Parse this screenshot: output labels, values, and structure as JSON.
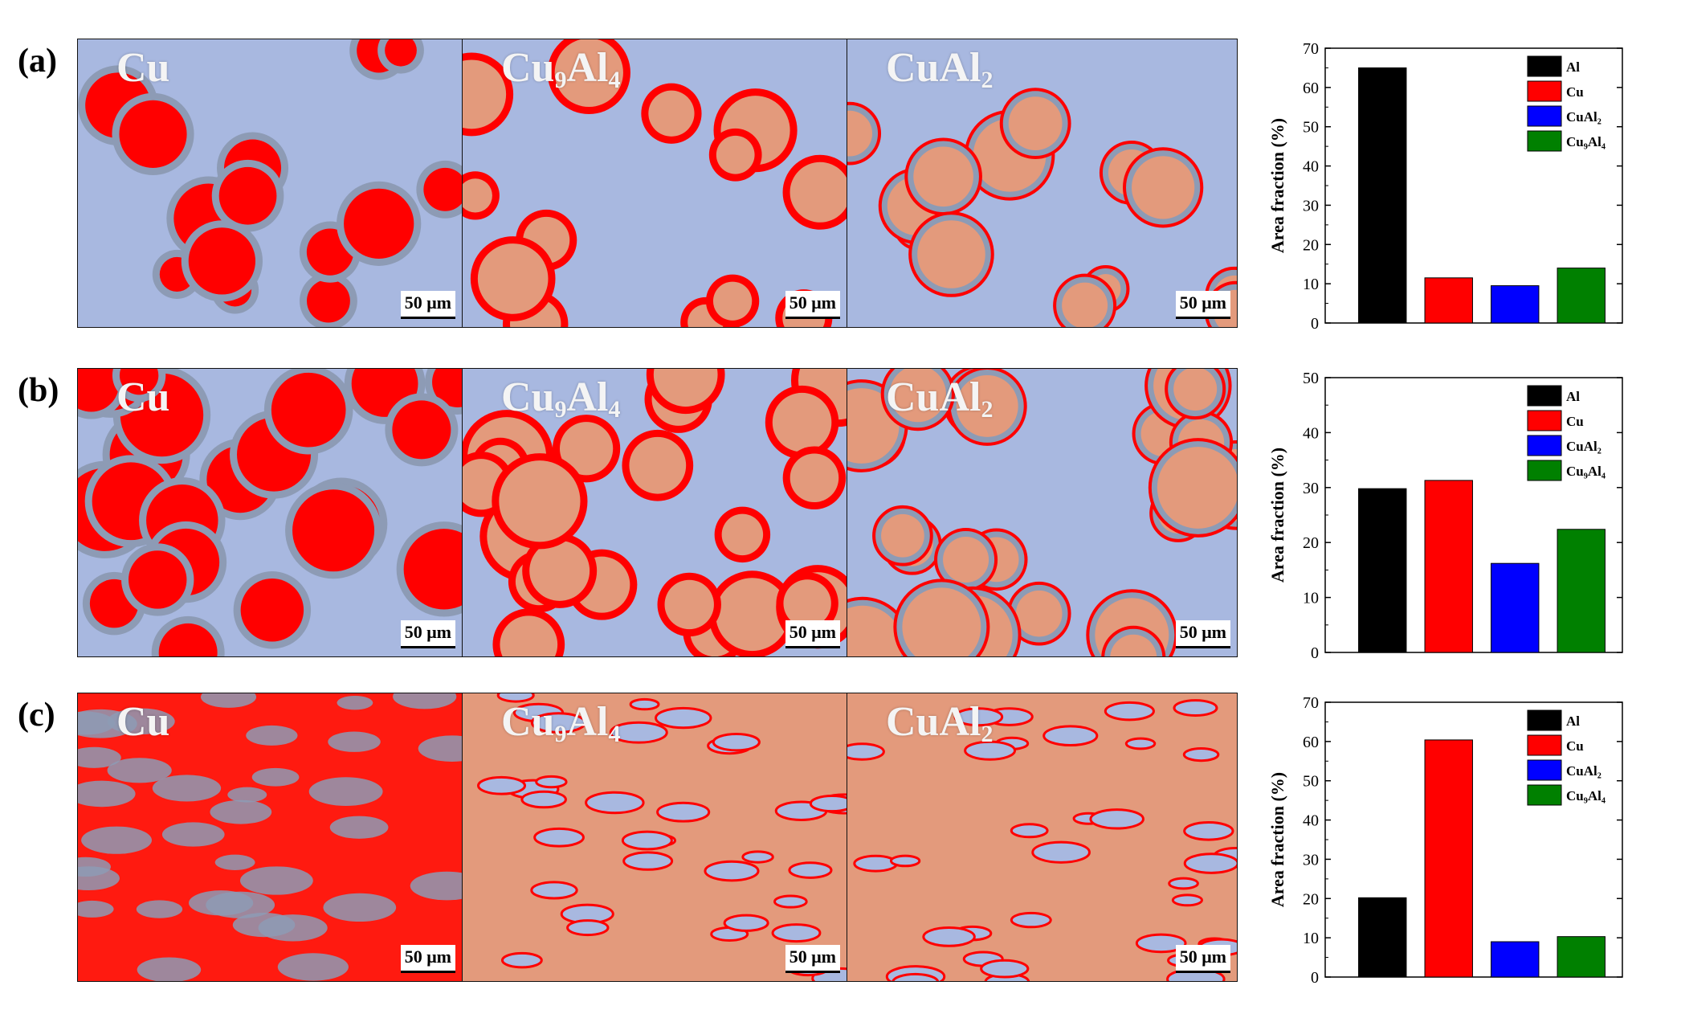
{
  "panels": [
    {
      "label": "(a)",
      "phases": [
        {
          "base": "Cu",
          "sub": ""
        },
        {
          "base": "Cu",
          "sub": "9",
          "base2": "Al",
          "sub2": "4"
        },
        {
          "base": "CuAl",
          "sub": "2"
        }
      ],
      "scale_bar": "50 μm"
    },
    {
      "label": "(b)",
      "phases": [
        {
          "base": "Cu",
          "sub": ""
        },
        {
          "base": "Cu",
          "sub": "9",
          "base2": "Al",
          "sub2": "4"
        },
        {
          "base": "CuAl",
          "sub": "2"
        }
      ],
      "scale_bar": "50 μm"
    },
    {
      "label": "(c)",
      "phases": [
        {
          "base": "Cu",
          "sub": ""
        },
        {
          "base": "Cu",
          "sub": "9",
          "base2": "Al",
          "sub2": "4"
        },
        {
          "base": "CuAl",
          "sub": "2"
        }
      ],
      "scale_bar": "50 μm"
    }
  ],
  "colors": {
    "Al": "#000000",
    "Cu": "#ff0000",
    "CuAl2": "#0000ff",
    "Cu9Al4": "#008000",
    "matrix": "#a8b8e0",
    "ring": "#8d9bb5",
    "particle": "#e39a7c"
  },
  "chart_data": [
    {
      "type": "bar",
      "categories": [
        "Al",
        "Cu",
        "CuAl2",
        "Cu9Al4"
      ],
      "values": [
        65,
        11.5,
        9.5,
        14
      ],
      "ylabel": "Area fraction (%)",
      "ylim": [
        0,
        70
      ],
      "yticks": [
        0,
        10,
        20,
        30,
        40,
        50,
        60,
        70
      ],
      "legend": [
        "Al",
        "Cu",
        "CuAl₂",
        "Cu₉Al₄"
      ],
      "legend_position": "top-right"
    },
    {
      "type": "bar",
      "categories": [
        "Al",
        "Cu",
        "CuAl2",
        "Cu9Al4"
      ],
      "values": [
        29.8,
        31.3,
        16.2,
        22.4
      ],
      "ylabel": "Area fraction (%)",
      "ylim": [
        0,
        50
      ],
      "yticks": [
        0,
        10,
        20,
        30,
        40,
        50
      ],
      "legend": [
        "Al",
        "Cu",
        "CuAl₂",
        "Cu₉Al₄"
      ],
      "legend_position": "top-right"
    },
    {
      "type": "bar",
      "categories": [
        "Al",
        "Cu",
        "CuAl2",
        "Cu9Al4"
      ],
      "values": [
        20.2,
        60.4,
        9,
        10.3
      ],
      "ylabel": "Area fraction (%)",
      "ylim": [
        0,
        70
      ],
      "yticks": [
        0,
        10,
        20,
        30,
        40,
        50,
        60,
        70
      ],
      "legend": [
        "Al",
        "Cu",
        "CuAl₂",
        "Cu₉Al₄"
      ],
      "legend_position": "top-right"
    }
  ]
}
